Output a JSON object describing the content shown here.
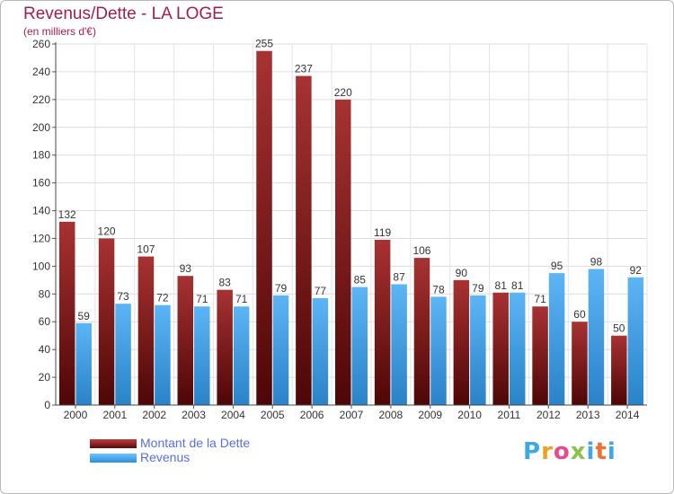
{
  "header": {
    "title": "Revenus/Dette - LA LOGE",
    "subtitle": "(en milliers d'€)"
  },
  "chart_data": {
    "type": "bar",
    "categories": [
      "2000",
      "2001",
      "2002",
      "2003",
      "2004",
      "2005",
      "2006",
      "2007",
      "2008",
      "2009",
      "2010",
      "2011",
      "2012",
      "2013",
      "2014"
    ],
    "series": [
      {
        "name": "Montant de la Dette",
        "color": "#7a1a1a",
        "values": [
          132,
          120,
          107,
          93,
          83,
          255,
          237,
          220,
          119,
          106,
          90,
          81,
          71,
          60,
          50
        ]
      },
      {
        "name": "Revenus",
        "color": "#3d9de6",
        "values": [
          59,
          73,
          72,
          71,
          71,
          79,
          77,
          85,
          87,
          78,
          79,
          81,
          95,
          98,
          92
        ]
      }
    ],
    "ylim": [
      0,
      260
    ],
    "yticks": [
      0,
      20,
      40,
      60,
      80,
      100,
      120,
      140,
      160,
      180,
      200,
      220,
      240,
      260
    ],
    "grid": true,
    "legend_position": "bottom-left"
  },
  "legend": {
    "debt_label": "Montant de la Dette",
    "revenue_label": "Revenus"
  },
  "logo": {
    "text": "Proxiti"
  }
}
